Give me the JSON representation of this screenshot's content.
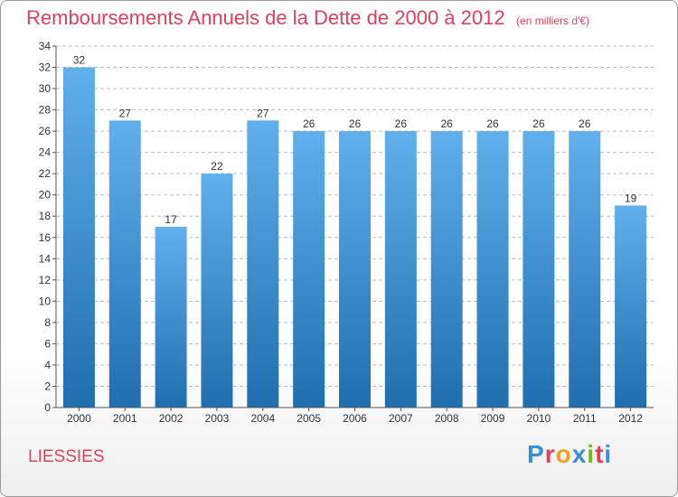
{
  "page": {
    "title": "Remboursements Annuels de la Dette de 2000 à 2012",
    "unit": "(en milliers d'€)",
    "place": "LIESSIES"
  },
  "logo": {
    "text": "Proxiti",
    "colors": [
      "#3a8fd6",
      "#e0405f",
      "#f0a020",
      "#3a8fd6",
      "#77b81f",
      "#e0405f",
      "#3a8fd6"
    ]
  },
  "colors": {
    "title": "#e0405f",
    "bar_top": "#5fb0ec",
    "bar_bottom": "#1f6fb0",
    "grid": "#bcbcbc"
  },
  "chart_data": {
    "type": "bar",
    "title": "Remboursements Annuels de la Dette de 2000 à 2012",
    "xlabel": "",
    "ylabel": "",
    "categories": [
      "2000",
      "2001",
      "2002",
      "2003",
      "2004",
      "2005",
      "2006",
      "2007",
      "2008",
      "2009",
      "2010",
      "2011",
      "2012"
    ],
    "values": [
      32,
      27,
      17,
      22,
      27,
      26,
      26,
      26,
      26,
      26,
      26,
      26,
      19
    ],
    "ylim": [
      0,
      34
    ],
    "ytick_step": 2,
    "grid": true
  }
}
